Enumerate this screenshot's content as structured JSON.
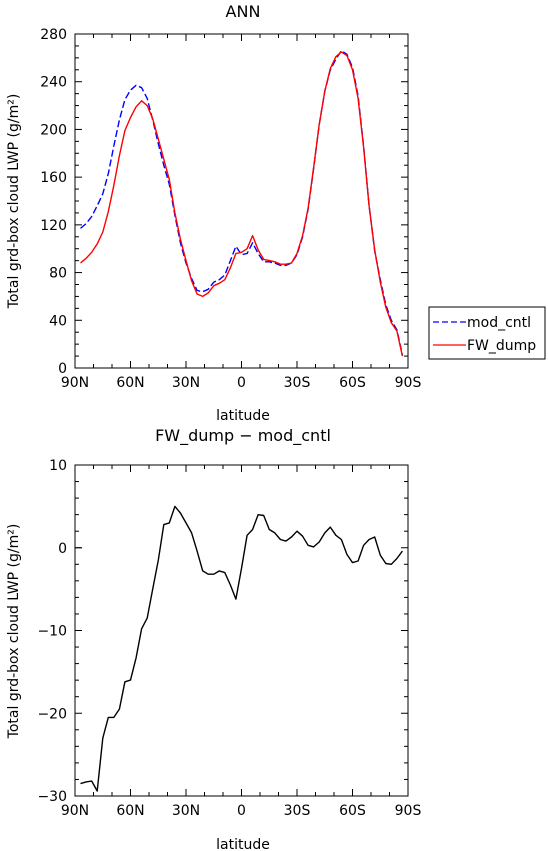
{
  "chart_data": [
    {
      "type": "line",
      "title": "ANN",
      "xlabel": "latitude",
      "ylabel": "Total grd-box cloud LWP (g/m²)",
      "xlim": [
        90,
        -90
      ],
      "ylim": [
        0,
        280
      ],
      "xticks": [
        90,
        60,
        30,
        0,
        -30,
        -60,
        -90
      ],
      "xtick_labels": [
        "90N",
        "60N",
        "30N",
        "0",
        "30S",
        "60S",
        "90S"
      ],
      "yticks": [
        0,
        40,
        80,
        120,
        160,
        200,
        240,
        280
      ],
      "ytick_labels": [
        "0",
        "40",
        "80",
        "120",
        "160",
        "200",
        "240",
        "280"
      ],
      "grid": false,
      "legend_position": "right",
      "series": [
        {
          "name": "mod_cntl",
          "color": "#0000ff",
          "style": "dashed",
          "x": [
            87,
            84,
            81,
            78,
            75,
            72,
            69,
            66,
            63,
            60,
            57,
            54,
            51,
            48,
            45,
            42,
            39,
            36,
            33,
            30,
            27,
            24,
            21,
            18,
            15,
            12,
            9,
            6,
            3,
            0,
            -3,
            -6,
            -9,
            -12,
            -15,
            -18,
            -21,
            -24,
            -27,
            -30,
            -33,
            -36,
            -39,
            -42,
            -45,
            -48,
            -51,
            -54,
            -57,
            -60,
            -63,
            -66,
            -69,
            -72,
            -75,
            -78,
            -81,
            -84,
            -87
          ],
          "values": [
            117,
            121,
            127,
            136,
            146,
            163,
            186,
            208,
            225,
            233,
            237,
            235,
            226,
            208,
            188,
            170,
            154,
            128,
            105,
            88,
            75,
            65,
            64,
            66,
            72,
            74,
            78,
            90,
            102,
            95,
            96,
            105,
            96,
            89,
            89,
            88,
            86,
            86,
            88,
            95,
            110,
            133,
            167,
            204,
            232,
            250,
            259,
            266,
            263,
            252,
            228,
            186,
            136,
            98,
            74,
            53,
            40,
            32,
            11
          ]
        },
        {
          "name": "FW_dump",
          "color": "#ff0000",
          "style": "solid",
          "x": [
            87,
            84,
            81,
            78,
            75,
            72,
            69,
            66,
            63,
            60,
            57,
            54,
            51,
            48,
            45,
            42,
            39,
            36,
            33,
            30,
            27,
            24,
            21,
            18,
            15,
            12,
            9,
            6,
            3,
            0,
            -3,
            -6,
            -9,
            -12,
            -15,
            -18,
            -21,
            -24,
            -27,
            -30,
            -33,
            -36,
            -39,
            -42,
            -45,
            -48,
            -51,
            -54,
            -57,
            -60,
            -63,
            -66,
            -69,
            -72,
            -75,
            -78,
            -81,
            -84,
            -87
          ],
          "values": [
            88,
            92,
            97,
            104,
            114,
            131,
            153,
            178,
            199,
            210,
            219,
            224,
            220,
            209,
            192,
            175,
            158,
            130,
            108,
            90,
            73,
            62,
            60,
            63,
            69,
            71,
            74,
            84,
            96,
            97,
            100,
            111,
            99,
            91,
            90,
            89,
            87,
            87,
            88,
            96,
            111,
            134,
            168,
            204,
            232,
            251,
            261,
            265,
            262,
            250,
            226,
            185,
            136,
            99,
            72,
            51,
            38,
            31,
            10
          ]
        }
      ]
    },
    {
      "type": "line",
      "title": "FW_dump − mod_cntl",
      "xlabel": "latitude",
      "ylabel": "Total grd-box cloud LWP (g/m²)",
      "xlim": [
        90,
        -90
      ],
      "ylim": [
        -30,
        10
      ],
      "xticks": [
        90,
        60,
        30,
        0,
        -30,
        -60,
        -90
      ],
      "xtick_labels": [
        "90N",
        "60N",
        "30N",
        "0",
        "30S",
        "60S",
        "90S"
      ],
      "yticks": [
        -30,
        -20,
        -10,
        0,
        10
      ],
      "ytick_labels": [
        "−30",
        "−20",
        "−10",
        "0",
        "10"
      ],
      "grid": false,
      "series": [
        {
          "color": "#000000",
          "style": "solid",
          "x": [
            87,
            84,
            81,
            78,
            75,
            72,
            69,
            66,
            63,
            60,
            57,
            54,
            51,
            48,
            45,
            42,
            39,
            36,
            33,
            30,
            27,
            24,
            21,
            18,
            15,
            12,
            9,
            6,
            3,
            0,
            -3,
            -6,
            -9,
            -12,
            -15,
            -18,
            -21,
            -24,
            -27,
            -30,
            -33,
            -36,
            -39,
            -42,
            -45,
            -48,
            -51,
            -54,
            -57,
            -60,
            -63,
            -66,
            -69,
            -72,
            -75,
            -78,
            -81,
            -84,
            -87
          ],
          "values": [
            -28.5,
            -28.3,
            -28.2,
            -29.4,
            -23.0,
            -20.5,
            -20.5,
            -19.5,
            -16.2,
            -16.0,
            -13.3,
            -9.8,
            -8.5,
            -5.0,
            -1.5,
            2.8,
            3.0,
            5.0,
            4.2,
            3.0,
            1.8,
            -0.4,
            -2.8,
            -3.2,
            -3.2,
            -2.8,
            -3.0,
            -4.5,
            -6.2,
            -2.5,
            1.5,
            2.2,
            4.0,
            3.9,
            2.2,
            1.8,
            1.0,
            0.8,
            1.3,
            2.0,
            1.4,
            0.3,
            0.1,
            0.7,
            1.8,
            2.5,
            1.5,
            1.0,
            -0.8,
            -1.8,
            -1.6,
            0.3,
            1.0,
            1.3,
            -0.9,
            -1.9,
            -2.0,
            -1.3,
            -0.4
          ]
        }
      ]
    }
  ],
  "legend": {
    "items": [
      {
        "label": "mod_cntl",
        "color": "#0000ff",
        "style": "dashed"
      },
      {
        "label": "FW_dump",
        "color": "#ff0000",
        "style": "solid"
      }
    ]
  }
}
